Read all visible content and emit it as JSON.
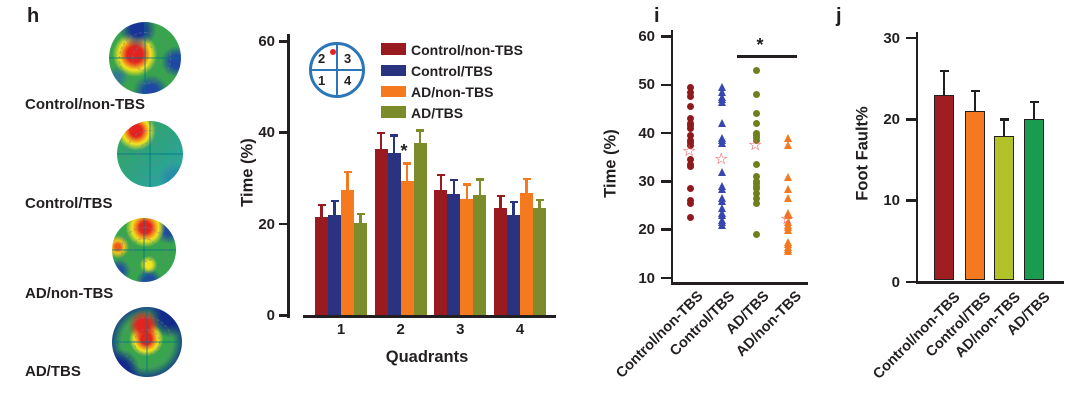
{
  "figure": {
    "text_color": "#231f20",
    "background": "#ffffff"
  },
  "panels": {
    "h": {
      "letter": "h",
      "heatmaps": [
        {
          "label": "Control/non-TBS"
        },
        {
          "label": "Control/TBS"
        },
        {
          "label": "AD/non-TBS"
        },
        {
          "label": "AD/TBS"
        }
      ],
      "inset": {
        "circle_color": "#2b76b9",
        "dot_color": "#e8231f",
        "quadrant_labels": [
          "2",
          "3",
          "1",
          "4"
        ]
      }
    },
    "i": {
      "letter": "i"
    },
    "j": {
      "letter": "j"
    }
  },
  "chart_data": [
    {
      "id": "h_bar_chart",
      "type": "bar",
      "xlabel": "Quadrants",
      "ylabel": "Time (%)",
      "ylim": [
        0,
        60
      ],
      "yticks": [
        "0",
        "20",
        "40",
        "60"
      ],
      "categories": [
        "1",
        "2",
        "3",
        "4"
      ],
      "legend_position": "top-right",
      "series": [
        {
          "name": "Control/non-TBS",
          "color": "#9a1b1f",
          "values": [
            21.5,
            36.5,
            27.5,
            23.5
          ],
          "errors": [
            2.7,
            3.4,
            3.3,
            2.6
          ]
        },
        {
          "name": "Control/TBS",
          "color": "#2a3380",
          "values": [
            22.0,
            35.5,
            26.5,
            22.0
          ],
          "errors": [
            3.1,
            3.9,
            3.2,
            2.8
          ]
        },
        {
          "name": "AD/non-TBS",
          "color": "#f4791f",
          "values": [
            27.5,
            29.5,
            25.5,
            26.8
          ],
          "errors": [
            3.9,
            3.8,
            3.2,
            3.1
          ]
        },
        {
          "name": "AD/TBS",
          "color": "#7d8c2b",
          "values": [
            20.3,
            37.7,
            26.4,
            23.5
          ],
          "errors": [
            1.9,
            2.8,
            3.4,
            1.8
          ]
        }
      ],
      "significance": {
        "text": "*",
        "at": "AD/non-TBS, quadrant 2"
      }
    },
    {
      "id": "i_dot_plot",
      "type": "scatter",
      "ylabel": "Time (%)",
      "ylim": [
        10,
        60
      ],
      "yticks": [
        "10",
        "20",
        "30",
        "40",
        "50",
        "60"
      ],
      "mean_marker": "open-star",
      "mean_marker_color": "#f0474e",
      "groups": [
        {
          "name": "Control/non-TBS",
          "marker": "circle",
          "color": "#8f1a1e",
          "mean": 36,
          "points": [
            49.5,
            48.5,
            47.5,
            45.5,
            43,
            42,
            41.5,
            41,
            39.5,
            38.5,
            38,
            37.5,
            34.5,
            33.5,
            33,
            28.5,
            26,
            25.5,
            22.5
          ]
        },
        {
          "name": "Control/TBS",
          "marker": "triangle",
          "color": "#3847b0",
          "mean": 34.5,
          "points": [
            49.5,
            48.5,
            47.5,
            47,
            46.5,
            42,
            39,
            38.5,
            38,
            32,
            29,
            28.5,
            26.5,
            26,
            24.5,
            23.5,
            23,
            22,
            21.5,
            21
          ]
        },
        {
          "name": "AD/TBS",
          "marker": "circle",
          "color": "#6e7f1e",
          "mean": 37.3,
          "points": [
            53,
            48,
            44,
            42,
            40,
            39.5,
            39,
            38.5,
            33.5,
            31,
            30,
            29.5,
            29,
            28.5,
            27.5,
            26.5,
            25.5,
            19
          ]
        },
        {
          "name": "AD/non-TBS",
          "marker": "triangle",
          "color": "#f4791f",
          "mean": 22,
          "points": [
            39,
            37.5,
            31,
            28.5,
            26.5,
            23.5,
            23,
            21.5,
            21,
            20.5,
            20,
            17.5,
            17,
            16.5,
            16,
            15.5
          ]
        }
      ],
      "significance": {
        "text": "*",
        "between": [
          "AD/TBS",
          "AD/non-TBS"
        ]
      }
    },
    {
      "id": "j_bar_chart",
      "type": "bar",
      "ylabel": "Foot Fault%",
      "ylim": [
        0,
        30
      ],
      "yticks": [
        "0",
        "10",
        "20",
        "30"
      ],
      "categories": [
        "Control/non-TBS",
        "Control/TBS",
        "AD/non-TBS",
        "AD/TBS"
      ],
      "values": [
        23,
        21,
        18,
        20
      ],
      "errors": [
        3,
        2.5,
        2,
        2.2
      ],
      "colors": [
        "#9e1e22",
        "#f4791f",
        "#b2c229",
        "#1a9b50"
      ],
      "error_color": "#231f20"
    }
  ]
}
